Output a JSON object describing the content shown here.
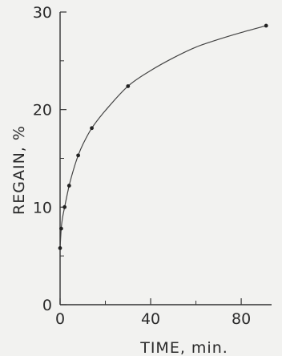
{
  "chart_data": {
    "type": "scatter",
    "title": "",
    "xlabel": "TIME, min.",
    "ylabel": "REGAIN, %",
    "xlim": [
      0,
      92
    ],
    "ylim": [
      0,
      30
    ],
    "x_ticks": [
      0,
      40,
      80
    ],
    "y_ticks": [
      0,
      10,
      20,
      30
    ],
    "grid": false,
    "legend": "none",
    "colors": {
      "axis": "#333333",
      "points": "#222222",
      "curve": "#444444",
      "background": "#f2f2f0"
    },
    "series": [
      {
        "x": [
          0,
          0.5,
          2,
          4,
          8,
          14,
          30,
          91
        ],
        "y": [
          5.8,
          7.8,
          10.0,
          12.2,
          15.3,
          18.1,
          22.4,
          28.6
        ]
      }
    ],
    "fit_curve": {
      "x": [
        0,
        0.5,
        1,
        2,
        4,
        6,
        8,
        10,
        14,
        20,
        30,
        40,
        50,
        60,
        70,
        80,
        91
      ],
      "y": [
        5.8,
        7.8,
        8.8,
        10.0,
        12.2,
        13.9,
        15.3,
        16.4,
        18.1,
        19.9,
        22.4,
        24.0,
        25.3,
        26.4,
        27.2,
        27.9,
        28.6
      ]
    }
  }
}
